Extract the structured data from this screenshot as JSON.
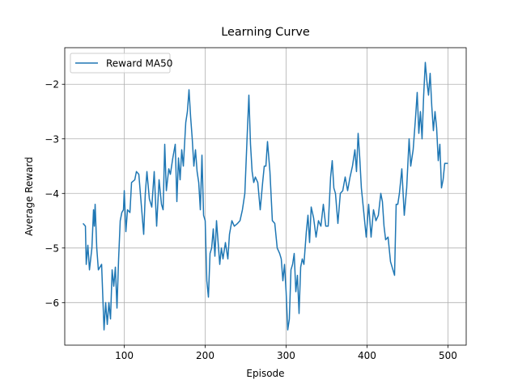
{
  "chart_data": {
    "type": "line",
    "title": "Learning Curve",
    "x_label": "Episode",
    "y_label": "Average Reward",
    "x": [
      49,
      52,
      53,
      55,
      57,
      60,
      62,
      63,
      64,
      66,
      68,
      70,
      72,
      73,
      75,
      77,
      79,
      81,
      83,
      85,
      87,
      89,
      91,
      93,
      95,
      97,
      99,
      100,
      102,
      104,
      107,
      109,
      113,
      115,
      118,
      121,
      124,
      126,
      128,
      131,
      134,
      137,
      140,
      143,
      146,
      148,
      150,
      152,
      155,
      157,
      160,
      163,
      165,
      167,
      169,
      171,
      173,
      176,
      178,
      180,
      182,
      184,
      186,
      188,
      190,
      192,
      194,
      196,
      198,
      200,
      202,
      204,
      206,
      208,
      210,
      212,
      214,
      216,
      218,
      220,
      222,
      225,
      228,
      230,
      233,
      236,
      240,
      243,
      246,
      249,
      252,
      254,
      256,
      258,
      260,
      262,
      265,
      268,
      271,
      273,
      275,
      277,
      280,
      283,
      286,
      289,
      292,
      294,
      296,
      298,
      300,
      302,
      304,
      306,
      308,
      310,
      312,
      314,
      316,
      318,
      320,
      322,
      325,
      327,
      329,
      331,
      334,
      337,
      340,
      343,
      346,
      349,
      352,
      355,
      357,
      359,
      361,
      364,
      367,
      370,
      373,
      376,
      379,
      382,
      385,
      387,
      389,
      391,
      393,
      396,
      399,
      402,
      405,
      408,
      411,
      414,
      417,
      419,
      421,
      423,
      426,
      429,
      432,
      434,
      436,
      438,
      440,
      443,
      446,
      449,
      452,
      454,
      457,
      460,
      462,
      464,
      466,
      468,
      470,
      472,
      474,
      476,
      478,
      480,
      482,
      484,
      486,
      488,
      490,
      492,
      494,
      496,
      498,
      500
    ],
    "series": [
      {
        "name": "Reward MA50",
        "color": "#1f77b4",
        "values": [
          -4.55,
          -4.6,
          -5.3,
          -4.95,
          -5.4,
          -5.0,
          -4.3,
          -4.6,
          -4.2,
          -5.0,
          -5.4,
          -5.35,
          -5.3,
          -5.7,
          -6.5,
          -6.0,
          -6.4,
          -6.0,
          -6.3,
          -5.4,
          -5.7,
          -5.35,
          -6.1,
          -5.2,
          -4.5,
          -4.35,
          -4.3,
          -3.95,
          -4.7,
          -4.3,
          -4.35,
          -3.8,
          -3.75,
          -3.6,
          -3.65,
          -4.2,
          -4.75,
          -4.0,
          -3.6,
          -4.1,
          -4.25,
          -3.6,
          -4.6,
          -3.75,
          -4.2,
          -4.3,
          -3.1,
          -3.95,
          -3.55,
          -3.65,
          -3.35,
          -3.1,
          -4.15,
          -3.35,
          -3.75,
          -3.2,
          -3.5,
          -2.7,
          -2.5,
          -2.1,
          -2.6,
          -3.0,
          -3.5,
          -3.2,
          -3.6,
          -3.8,
          -4.3,
          -3.3,
          -4.4,
          -4.5,
          -5.6,
          -5.9,
          -5.1,
          -5.0,
          -4.65,
          -5.15,
          -4.5,
          -4.9,
          -5.3,
          -5.0,
          -5.2,
          -4.9,
          -5.2,
          -4.75,
          -4.5,
          -4.6,
          -4.55,
          -4.5,
          -4.3,
          -4.0,
          -2.9,
          -2.2,
          -3.1,
          -3.6,
          -3.8,
          -3.7,
          -3.8,
          -4.3,
          -3.8,
          -3.5,
          -3.5,
          -3.05,
          -3.6,
          -4.5,
          -4.55,
          -5.0,
          -5.1,
          -5.2,
          -5.6,
          -5.3,
          -5.8,
          -6.5,
          -6.3,
          -5.4,
          -5.3,
          -5.1,
          -5.8,
          -5.5,
          -6.2,
          -5.35,
          -5.2,
          -5.3,
          -4.7,
          -4.4,
          -4.9,
          -4.25,
          -4.45,
          -4.8,
          -4.5,
          -4.6,
          -4.2,
          -4.6,
          -4.6,
          -3.7,
          -3.4,
          -3.9,
          -4.0,
          -4.55,
          -4.0,
          -3.95,
          -3.7,
          -3.95,
          -3.7,
          -3.5,
          -3.2,
          -3.6,
          -2.9,
          -3.35,
          -3.9,
          -4.35,
          -4.8,
          -4.2,
          -4.8,
          -4.3,
          -4.5,
          -4.4,
          -4.0,
          -4.15,
          -4.6,
          -4.85,
          -4.8,
          -5.25,
          -5.4,
          -5.5,
          -4.2,
          -4.2,
          -4.0,
          -3.55,
          -4.4,
          -3.9,
          -3.0,
          -3.5,
          -3.2,
          -2.6,
          -2.15,
          -2.9,
          -2.5,
          -3.0,
          -2.2,
          -1.6,
          -1.95,
          -2.2,
          -1.8,
          -2.4,
          -2.85,
          -2.5,
          -2.8,
          -3.4,
          -3.1,
          -3.9,
          -3.75,
          -3.45,
          -3.45,
          -3.45
        ]
      }
    ],
    "xlim": [
      26.45,
      522.55
    ],
    "ylim": [
      -6.78,
      -1.33
    ],
    "xticks": [
      100,
      200,
      300,
      400,
      500
    ],
    "yticks": [
      {
        "value": -6,
        "label": "−6"
      },
      {
        "value": -5,
        "label": "−5"
      },
      {
        "value": -4,
        "label": "−4"
      },
      {
        "value": -3,
        "label": "−3"
      },
      {
        "value": -2,
        "label": "−2"
      }
    ],
    "grid": true,
    "legend": "upper-left"
  }
}
